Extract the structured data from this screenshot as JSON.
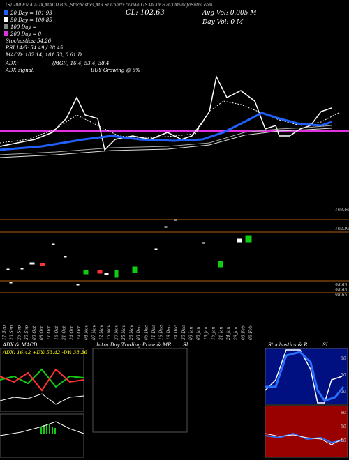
{
  "header": {
    "title": "(S) 200 EMA ADX,MACD,B SI,Stochastics,MR SI Charts 500440 (S34C0EH2C) MunafaSutra.com",
    "ema20": "20 Day = 101.93",
    "ema50": "50 Day = 100.85",
    "ema100": "100 Day =",
    "ema200": "200 Day = 0",
    "close": "CL: 102.63",
    "avg_vol": "Avg Vol: 0.005 M",
    "day_vol": "Day Vol: 0  M",
    "stoch": "Stochastics: 54.26",
    "rsi": "RSI 14/5: 54.49 / 28.45",
    "macd": "MACD: 102.14, 101.53, 0.61 D",
    "adx": "ADX:",
    "adx_vals": "(MGR) 16.4, 53.4, 38.4",
    "adx_signal": "ADX  signal:",
    "signal": "BUY Growing @ 5%"
  },
  "price_labels": [
    "103.66",
    "102.95",
    "98.65",
    "98.65",
    "98.65"
  ],
  "dates": [
    "17 Sep",
    "20 Sep",
    "25 Sep",
    "30 Sep",
    "03 Oct",
    "08 Oct",
    "11 Oct",
    "16 Oct",
    "21 Oct",
    "24 Oct",
    "29 Oct",
    "04 Nov",
    "07 Nov",
    "12 Nov",
    "15 Nov",
    "20 Nov",
    "25 Nov",
    "28 Nov",
    "03 Dec",
    "06 Dec",
    "11 Dec",
    "16 Dec",
    "19 Dec",
    "24 Dec",
    "30 Dec",
    "03 Jan",
    "08 Jan",
    "13 Jan",
    "16 Jan",
    "21 Jan",
    "24 Jan",
    "29 Jan",
    "03 Feb",
    "06 Feb"
  ],
  "panels": {
    "adx_title": "ADX  & MACD",
    "adx_line": "ADX: 16.42  +DY: 53.42  -DY: 38.36",
    "intra_title": "Intra  Day Trading Price  & MR",
    "intra_si": "SI",
    "stoch_title": "Stochastics & R",
    "stoch_si": "SI",
    "stoch_ticks": [
      "80",
      "50",
      "20"
    ],
    "rsi_ticks": [
      "80",
      "50",
      "20"
    ]
  }
}
